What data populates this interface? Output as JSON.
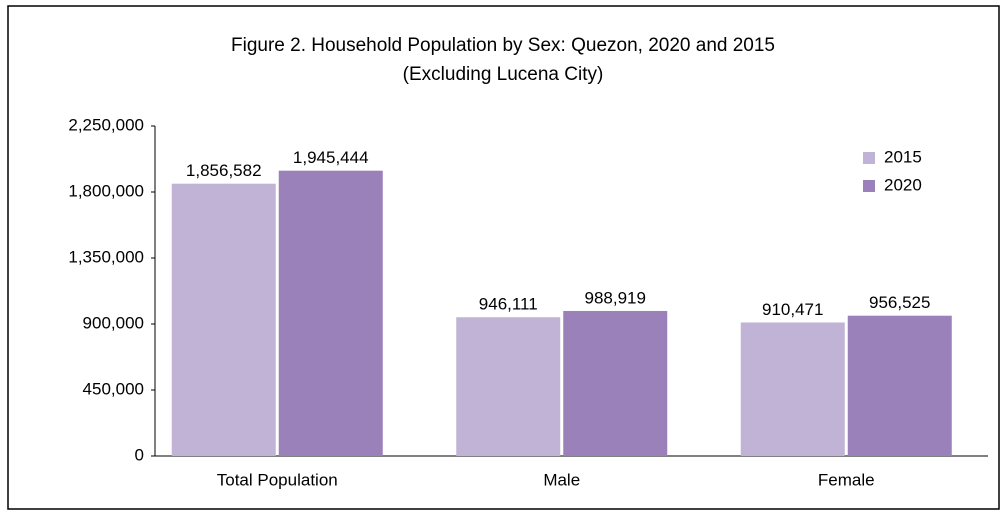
{
  "chart_data": {
    "type": "bar",
    "title": "Figure 2. Household Population by Sex: Quezon, 2020 and 2015",
    "subtitle": "(Excluding Lucena City)",
    "categories": [
      "Total Population",
      "Male",
      "Female"
    ],
    "series": [
      {
        "name": "2015",
        "color": "#c0b3d6",
        "values": [
          1856582,
          946111,
          910471
        ],
        "value_labels": [
          "1,856,582",
          "946,111",
          "910,471"
        ]
      },
      {
        "name": "2020",
        "color": "#9a81b9",
        "values": [
          1945444,
          988919,
          956525
        ],
        "value_labels": [
          "1,945,444",
          "988,919",
          "956,525"
        ]
      }
    ],
    "ylim": [
      0,
      2250000
    ],
    "yticks": [
      0,
      {
        "value": 450000,
        "label": "450,000"
      },
      {
        "value": 900000,
        "label": "900,000"
      },
      {
        "value": 1350000,
        "label": "1,350,000"
      },
      {
        "value": 1800000,
        "label": "1,800,000"
      },
      {
        "value": 2250000,
        "label": "2,250,000"
      }
    ],
    "grid": false,
    "legend": "top-right"
  }
}
